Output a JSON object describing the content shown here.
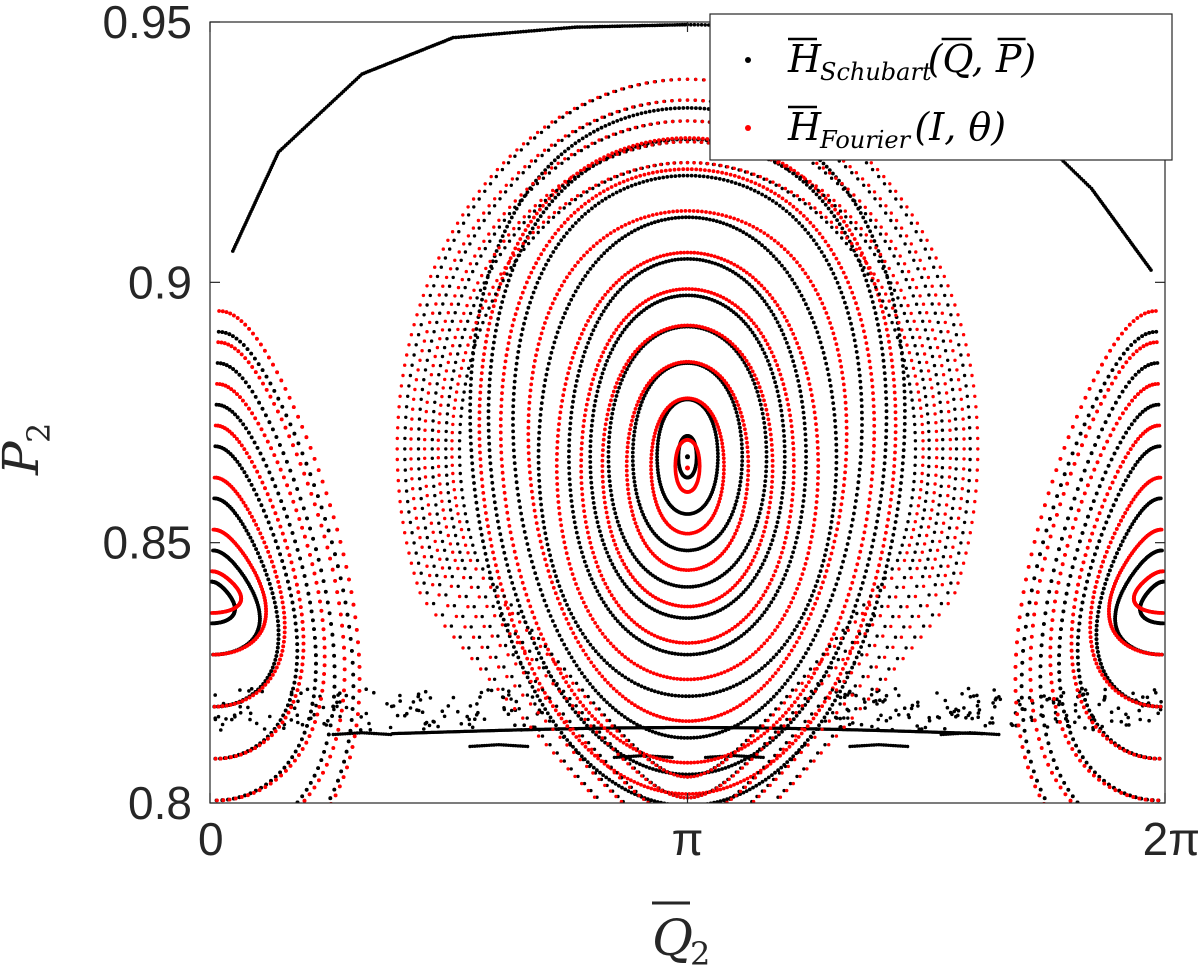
{
  "chart_data": {
    "type": "scatter",
    "subtype": "poincare-section",
    "xlabel": {
      "main": "Q",
      "sub": "2",
      "overline": true
    },
    "ylabel": {
      "main": "P",
      "sub": "2",
      "overline": true
    },
    "xlim": [
      0,
      6.2832
    ],
    "ylim": [
      0.8,
      0.95
    ],
    "xticks": [
      {
        "value": 0,
        "label": "0"
      },
      {
        "value": 3.1416,
        "label": "π"
      },
      {
        "value": 6.2832,
        "label": "2π"
      }
    ],
    "yticks": [
      {
        "value": 0.8,
        "label": "0.8"
      },
      {
        "value": 0.85,
        "label": "0.85"
      },
      {
        "value": 0.9,
        "label": "0.9"
      },
      {
        "value": 0.95,
        "label": "0.95"
      }
    ],
    "grid": false,
    "legend_position": "top-right",
    "colors": {
      "schubart": "#000000",
      "fourier": "#ff0000"
    },
    "series": [
      {
        "name": "H_Schubart(Q, P)",
        "legend": {
          "main": "H",
          "sub": "Schubart",
          "args": [
            "Q",
            "P"
          ]
        },
        "color": "#000000",
        "center_island": {
          "cx": 3.1416,
          "cy": 0.8665,
          "rx": [
            0.06,
            0.2,
            0.36,
            0.52,
            0.64,
            0.78,
            0.98,
            1.14,
            1.3,
            1.42
          ],
          "ry": [
            0.004,
            0.011,
            0.018,
            0.025,
            0.031,
            0.038,
            0.046,
            0.054,
            0.061,
            0.067
          ]
        },
        "side_island": {
          "cx": 0.0,
          "cy": 0.8385,
          "rx": [
            0.2,
            0.4,
            0.55,
            0.7,
            0.85,
            1.0,
            1.15
          ],
          "ry": [
            0.004,
            0.01,
            0.02,
            0.03,
            0.038,
            0.046,
            0.052
          ]
        },
        "top_arc": [
          [
            0.15,
            0.906
          ],
          [
            0.45,
            0.925
          ],
          [
            1.0,
            0.94
          ],
          [
            1.6,
            0.947
          ],
          [
            2.4,
            0.949
          ],
          [
            3.14,
            0.9495
          ],
          [
            4.2,
            0.949
          ],
          [
            5.2,
            0.935
          ],
          [
            5.8,
            0.918
          ],
          [
            6.2,
            0.902
          ]
        ],
        "chaotic_band": {
          "y_range": [
            0.814,
            0.822
          ]
        },
        "lower_chain": [
          [
            1.0,
            0.8135
          ],
          [
            1.9,
            0.8112
          ],
          [
            2.85,
            0.8091
          ],
          [
            3.45,
            0.8091
          ],
          [
            4.4,
            0.8112
          ],
          [
            5.0,
            0.8135
          ]
        ]
      },
      {
        "name": "H_Fourier(I, θ)",
        "legend": {
          "main": "H",
          "sub": "Fourier",
          "args": [
            "I",
            "θ"
          ]
        },
        "color": "#ff0000",
        "center_island": {
          "cx": 3.1416,
          "cy": 0.8655,
          "rx": [
            0.08,
            0.24,
            0.4,
            0.56,
            0.7,
            0.86,
            1.04,
            1.22,
            1.36
          ],
          "ry": [
            0.005,
            0.013,
            0.02,
            0.027,
            0.034,
            0.041,
            0.049,
            0.057,
            0.063
          ]
        },
        "side_island": {
          "cx": 0.0,
          "cy": 0.8405,
          "rx": [
            0.25,
            0.45,
            0.6,
            0.75,
            0.92,
            1.08,
            1.2
          ],
          "ry": [
            0.004,
            0.012,
            0.022,
            0.032,
            0.04,
            0.048,
            0.054
          ]
        }
      }
    ]
  }
}
